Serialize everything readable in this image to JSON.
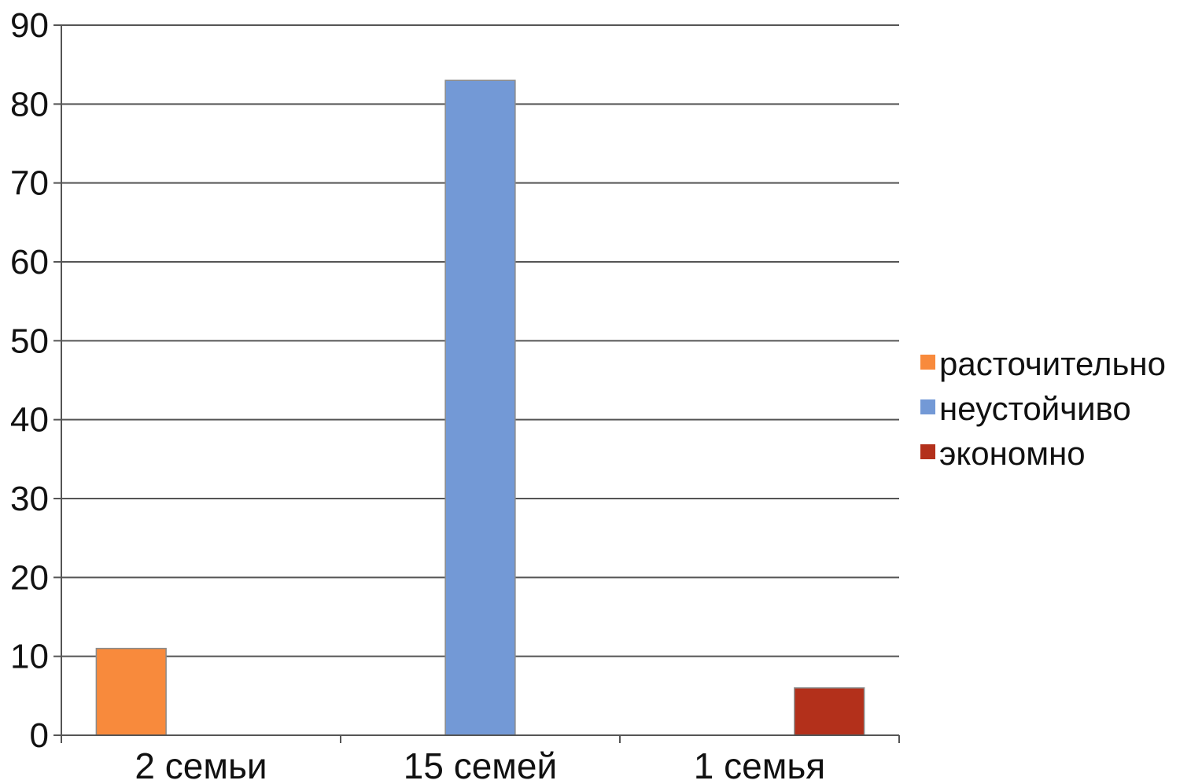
{
  "chart_data": {
    "type": "bar",
    "categories": [
      "2 семьи",
      "15 семей",
      "1 семья"
    ],
    "series": [
      {
        "name": "расточительно",
        "values": [
          11,
          0,
          0
        ],
        "color": "#F88A3C"
      },
      {
        "name": "неустойчиво",
        "values": [
          0,
          83,
          0
        ],
        "color": "#7399D6"
      },
      {
        "name": "экономно",
        "values": [
          0,
          0,
          6
        ],
        "color": "#B3301B"
      }
    ],
    "ylim": [
      0,
      90
    ],
    "yticks": [
      0,
      10,
      20,
      30,
      40,
      50,
      60,
      70,
      80,
      90
    ],
    "grid": true,
    "legend_position": "right",
    "title": "",
    "xlabel": "",
    "ylabel": ""
  }
}
